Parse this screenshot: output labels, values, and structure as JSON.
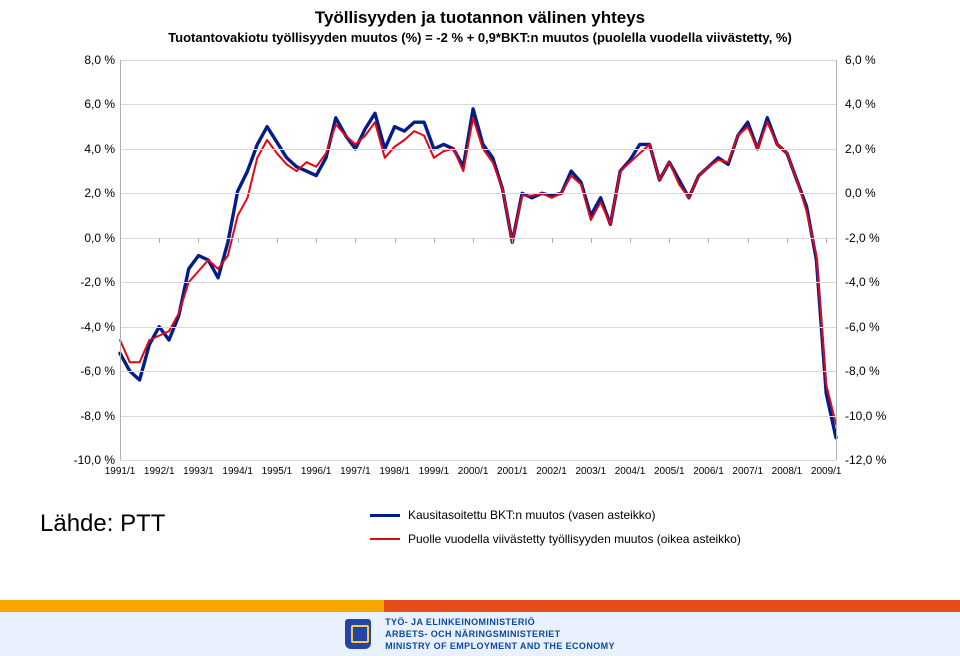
{
  "title": {
    "main": "Työllisyyden ja tuotannon välinen yhteys",
    "sub": "Tuotantovakiotu työllisyyden muutos (%) = -2 % + 0,9*BKT:n muutos (puolella vuodella viivästetty, %)",
    "fontsize_main": 17,
    "fontsize_sub": 13,
    "color": "#000000"
  },
  "source_label": "Lähde: PTT",
  "legend": {
    "items": [
      {
        "label": "Kausitasoitettu BKT:n muutos (vasen asteikko)",
        "color": "#001e8a",
        "width": 3
      },
      {
        "label": "Puolle vuodella viivästetty työllisyyden muutos (oikea asteikko)",
        "color": "#e30613",
        "width": 2
      }
    ]
  },
  "chart": {
    "type": "line",
    "background": "#ffffff",
    "grid_color": "#d9d9d9",
    "axis_color": "#b0b0b0",
    "left_axis": {
      "min": -10,
      "max": 8,
      "step": 2,
      "unit": " %",
      "decimals": 1,
      "decimal_sep": ","
    },
    "right_axis": {
      "min": -12,
      "max": 6,
      "step": 2,
      "unit": " %",
      "decimals": 1,
      "decimal_sep": ","
    },
    "x_labels": [
      "1991/1",
      "1992/1",
      "1993/1",
      "1994/1",
      "1995/1",
      "1996/1",
      "1997/1",
      "1998/1",
      "1999/1",
      "2000/1",
      "2001/1",
      "2002/1",
      "2003/1",
      "2004/1",
      "2005/1",
      "2006/1",
      "2007/1",
      "2008/1",
      "2009/1"
    ],
    "points_per_x_label": 4,
    "series": [
      {
        "name": "bkt",
        "color": "#001e8a",
        "width": 3.4,
        "axis": "left",
        "values": [
          -5.2,
          -6.0,
          -6.4,
          -4.8,
          -4.0,
          -4.6,
          -3.5,
          -1.4,
          -0.8,
          -1.0,
          -1.8,
          -0.2,
          2.1,
          3.0,
          4.2,
          5.0,
          4.3,
          3.6,
          3.2,
          3.0,
          2.8,
          3.6,
          5.4,
          4.6,
          4.0,
          4.9,
          5.6,
          4.0,
          5.0,
          4.8,
          5.2,
          5.2,
          4.0,
          4.2,
          4.0,
          3.2,
          5.8,
          4.2,
          3.6,
          2.2,
          -0.2,
          2.0,
          1.8,
          2.0,
          1.9,
          2.0,
          3.0,
          2.5,
          1.0,
          1.8,
          0.6,
          3.0,
          3.5,
          4.2,
          4.2,
          2.6,
          3.4,
          2.6,
          1.8,
          2.8,
          3.2,
          3.6,
          3.3,
          4.6,
          5.2,
          4.0,
          5.4,
          4.2,
          3.8,
          2.6,
          1.4,
          -1.0,
          -7.0,
          -9.0
        ]
      },
      {
        "name": "employment",
        "color": "#e30613",
        "width": 2.0,
        "axis": "right",
        "values": [
          -6.6,
          -7.6,
          -7.6,
          -6.6,
          -6.4,
          -6.2,
          -5.4,
          -4.0,
          -3.5,
          -3.0,
          -3.4,
          -2.8,
          -1.0,
          -0.2,
          1.6,
          2.4,
          1.8,
          1.3,
          1.0,
          1.4,
          1.2,
          1.8,
          3.1,
          2.6,
          2.2,
          2.6,
          3.2,
          1.6,
          2.1,
          2.4,
          2.8,
          2.6,
          1.6,
          1.9,
          2.0,
          1.0,
          3.4,
          2.0,
          1.4,
          0.2,
          -2.2,
          -0.1,
          -0.1,
          0.0,
          -0.2,
          0.0,
          0.8,
          0.4,
          -1.2,
          -0.4,
          -1.4,
          1.0,
          1.4,
          1.8,
          2.2,
          0.6,
          1.4,
          0.4,
          -0.2,
          0.8,
          1.2,
          1.5,
          1.4,
          2.6,
          3.0,
          2.0,
          3.2,
          2.2,
          1.8,
          0.6,
          -0.8,
          -2.8,
          -8.6,
          -10.4
        ]
      }
    ]
  },
  "ministry": {
    "line1": "TYÖ- JA ELINKEINOMINISTERIÖ",
    "line2": "ARBETS- OCH NÄRINGSMINISTERIET",
    "line3": "MINISTRY OF EMPLOYMENT AND THE ECONOMY"
  }
}
